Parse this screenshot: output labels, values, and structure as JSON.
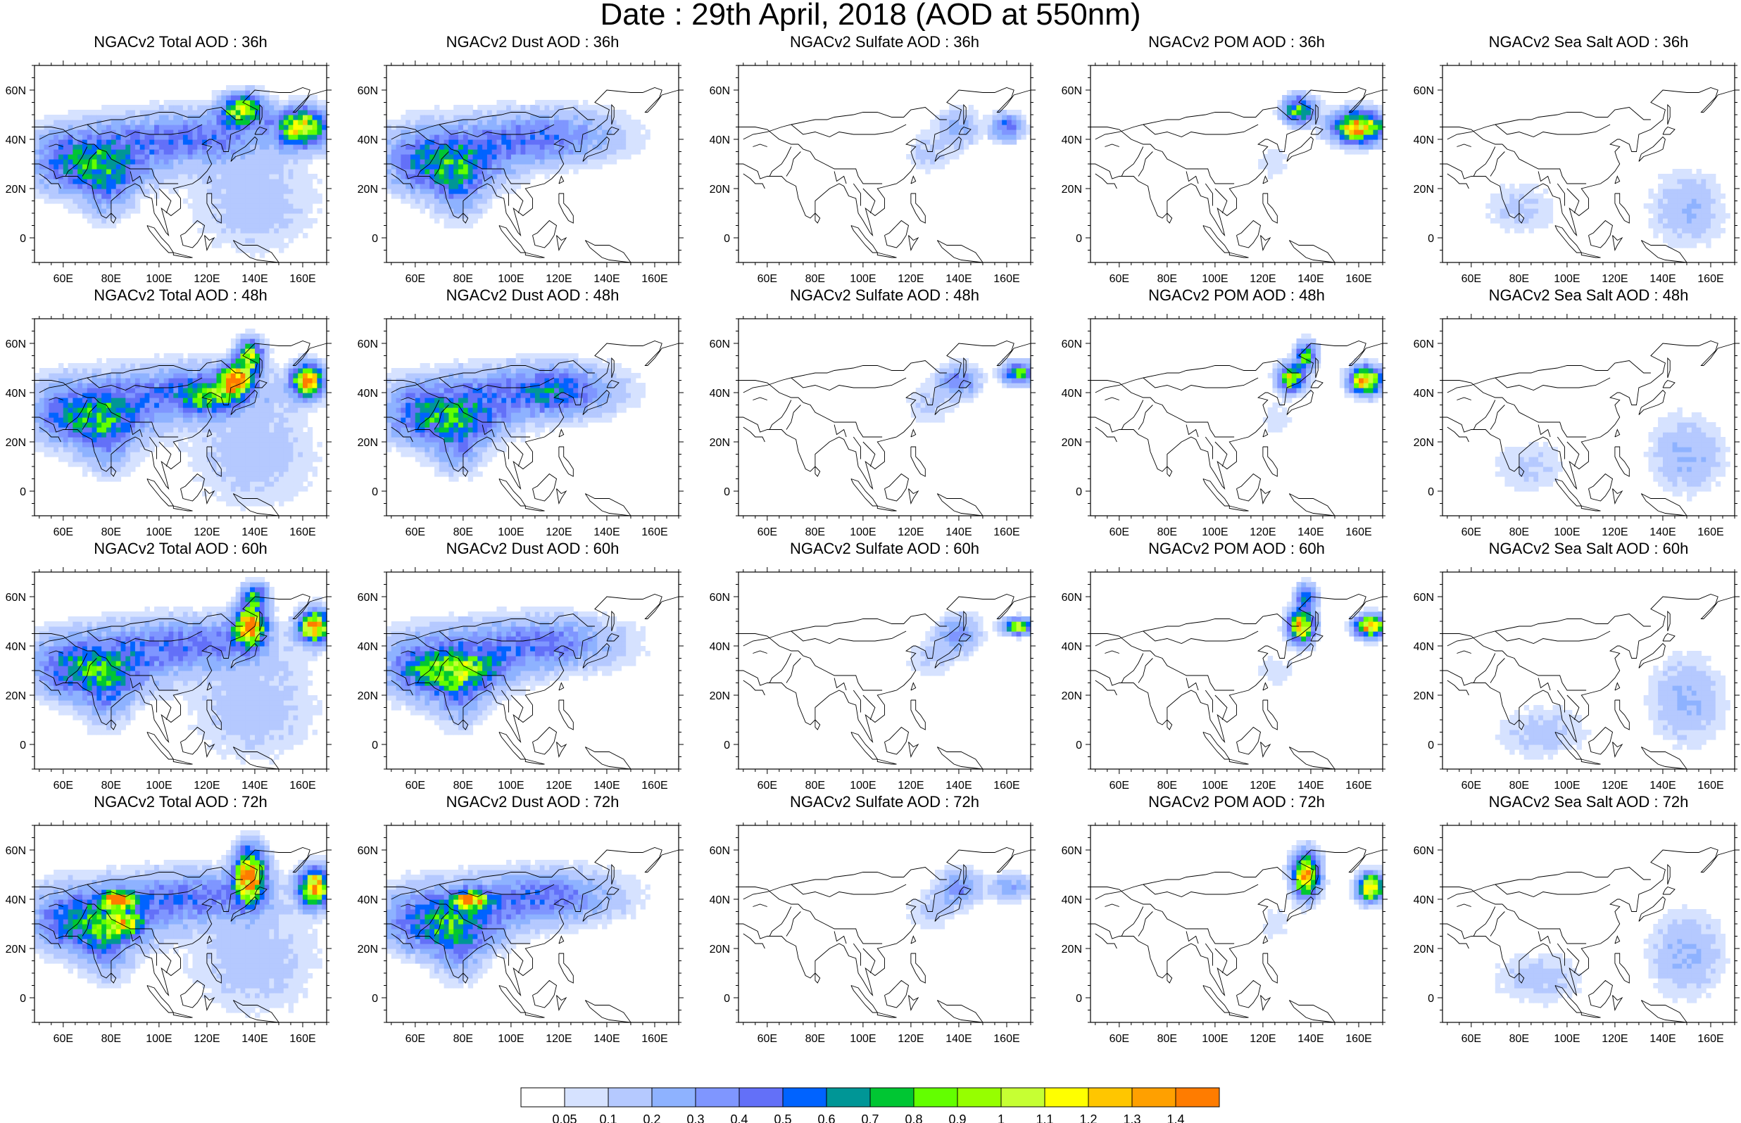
{
  "title": "Date : 29th April, 2018 (AOD at 550nm)",
  "lon_ticks": [
    "60E",
    "80E",
    "100E",
    "120E",
    "140E",
    "160E"
  ],
  "lat_ticks": [
    "60N",
    "40N",
    "20N",
    "0"
  ],
  "map_extent": {
    "lon": [
      48,
      170
    ],
    "lat": [
      -10,
      70
    ]
  },
  "rows": [
    "36h",
    "48h",
    "60h",
    "72h"
  ],
  "columns": [
    "Total",
    "Dust",
    "Sulfate",
    "POM",
    "Sea Salt"
  ],
  "panel_titles": [
    [
      "NGACv2 Total AOD : 36h",
      "NGACv2 Dust AOD : 36h",
      "NGACv2 Sulfate AOD : 36h",
      "NGACv2 POM AOD : 36h",
      "NGACv2 Sea Salt AOD : 36h"
    ],
    [
      "NGACv2 Total AOD : 48h",
      "NGACv2 Dust AOD : 48h",
      "NGACv2 Sulfate AOD : 48h",
      "NGACv2 POM AOD : 48h",
      "NGACv2 Sea Salt AOD : 48h"
    ],
    [
      "NGACv2 Total AOD : 60h",
      "NGACv2 Dust AOD : 60h",
      "NGACv2 Sulfate AOD : 60h",
      "NGACv2 POM AOD : 60h",
      "NGACv2 Sea Salt AOD : 60h"
    ],
    [
      "NGACv2 Total AOD : 72h",
      "NGACv2 Dust AOD : 72h",
      "NGACv2 Sulfate AOD : 72h",
      "NGACv2 POM AOD : 72h",
      "NGACv2 Sea Salt  AOD : 72h"
    ]
  ],
  "colorbar": {
    "labels": [
      "0.05",
      "0.1",
      "0.2",
      "0.3",
      "0.4",
      "0.5",
      "0.6",
      "0.7",
      "0.8",
      "0.9",
      "1",
      "1.1",
      "1.2",
      "1.3",
      "1.4"
    ],
    "colors": [
      "#ffffff",
      "#d6e2ff",
      "#b5c9ff",
      "#8eb2ff",
      "#7f96ff",
      "#6370f8",
      "#0063ff",
      "#009696",
      "#00c633",
      "#63ff00",
      "#96ff00",
      "#c6ff33",
      "#ffff00",
      "#ffc600",
      "#ffa000",
      "#ff7c00",
      "#ff1900"
    ]
  },
  "aod_fields": {
    "total": [
      {
        "lon": 75,
        "lat": 30,
        "sx": 22,
        "sy": 10,
        "v": 0.5
      },
      {
        "lon": 78,
        "lat": 22,
        "sx": 12,
        "sy": 12,
        "v": 0.35
      },
      {
        "lon": 95,
        "lat": 40,
        "sx": 35,
        "sy": 10,
        "v": 0.3
      },
      {
        "lon": 110,
        "lat": 45,
        "sx": 25,
        "sy": 12,
        "v": 0.25
      },
      {
        "lon": 135,
        "lat": 52,
        "sx": 8,
        "sy": 6,
        "v": 1.0
      },
      {
        "lon": 160,
        "lat": 45,
        "sx": 10,
        "sy": 7,
        "v": 1.2
      },
      {
        "lon": 135,
        "lat": 15,
        "sx": 20,
        "sy": 18,
        "v": 0.15
      }
    ]
  }
}
